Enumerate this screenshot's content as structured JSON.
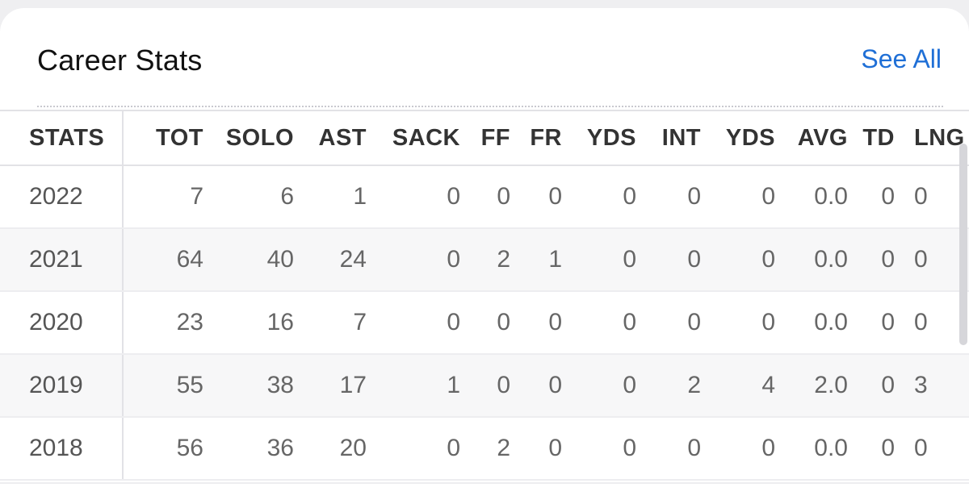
{
  "card": {
    "title": "Career Stats",
    "see_all_label": "See All"
  },
  "table": {
    "columns": [
      "STATS",
      "TOT",
      "SOLO",
      "AST",
      "SACK",
      "FF",
      "FR",
      "YDS",
      "INT",
      "YDS",
      "AVG",
      "TD",
      "LNG"
    ],
    "rows": [
      [
        "2022",
        "7",
        "6",
        "1",
        "0",
        "0",
        "0",
        "0",
        "0",
        "0",
        "0.0",
        "0",
        "0"
      ],
      [
        "2021",
        "64",
        "40",
        "24",
        "0",
        "2",
        "1",
        "0",
        "0",
        "0",
        "0.0",
        "0",
        "0"
      ],
      [
        "2020",
        "23",
        "16",
        "7",
        "0",
        "0",
        "0",
        "0",
        "0",
        "0",
        "0.0",
        "0",
        "0"
      ],
      [
        "2019",
        "55",
        "38",
        "17",
        "1",
        "0",
        "0",
        "0",
        "2",
        "4",
        "2.0",
        "0",
        "3"
      ],
      [
        "2018",
        "56",
        "36",
        "20",
        "0",
        "2",
        "0",
        "0",
        "0",
        "0",
        "0.0",
        "0",
        "0"
      ]
    ]
  },
  "colors": {
    "accent": "#1f6fd6",
    "title": "#111111",
    "header_text": "#333333",
    "cell_text": "#666666",
    "stripe": "#f7f7f8"
  }
}
